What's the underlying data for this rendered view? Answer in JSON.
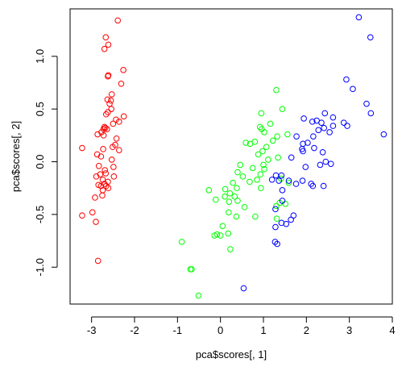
{
  "chart_data": {
    "type": "scatter",
    "title": "",
    "xlabel": "pca$scores[, 1]",
    "ylabel": "pca$scores[, 2]",
    "xlim": [
      -3.5,
      4.0
    ],
    "ylim": [
      -1.35,
      1.45
    ],
    "xticks": [
      -3,
      -2,
      -1,
      0,
      1,
      2,
      3,
      4
    ],
    "yticks": [
      -1.0,
      -0.5,
      0.0,
      0.5,
      1.0
    ],
    "xtick_labels": [
      "-3",
      "-2",
      "-1",
      "0",
      "1",
      "2",
      "3",
      "4"
    ],
    "ytick_labels": [
      "-1.0",
      "-0.5",
      "0.0",
      "0.5",
      "1.0"
    ],
    "grid": false,
    "legend": "none",
    "marker": "open-circle",
    "series": [
      {
        "color": "#ff0000",
        "points": [
          [
            -2.39,
            1.34
          ],
          [
            -2.67,
            1.18
          ],
          [
            -2.61,
            1.11
          ],
          [
            -2.7,
            1.07
          ],
          [
            -2.26,
            0.87
          ],
          [
            -2.61,
            0.82
          ],
          [
            -2.62,
            0.81
          ],
          [
            -2.31,
            0.74
          ],
          [
            -2.53,
            0.64
          ],
          [
            -2.63,
            0.59
          ],
          [
            -2.55,
            0.58
          ],
          [
            -2.58,
            0.55
          ],
          [
            -2.54,
            0.5
          ],
          [
            -2.62,
            0.47
          ],
          [
            -2.66,
            0.45
          ],
          [
            -2.25,
            0.43
          ],
          [
            -2.43,
            0.4
          ],
          [
            -2.36,
            0.38
          ],
          [
            -2.5,
            0.36
          ],
          [
            -2.7,
            0.33
          ],
          [
            -2.68,
            0.32
          ],
          [
            -2.72,
            0.31
          ],
          [
            -2.64,
            0.31
          ],
          [
            -2.77,
            0.28
          ],
          [
            -2.86,
            0.26
          ],
          [
            -2.72,
            0.25
          ],
          [
            -2.42,
            0.22
          ],
          [
            -2.45,
            0.16
          ],
          [
            -2.51,
            0.14
          ],
          [
            -3.22,
            0.13
          ],
          [
            -2.73,
            0.12
          ],
          [
            -2.36,
            0.11
          ],
          [
            -2.87,
            0.07
          ],
          [
            -2.78,
            0.05
          ],
          [
            -2.53,
            0.02
          ],
          [
            -2.83,
            -0.04
          ],
          [
            -2.49,
            -0.05
          ],
          [
            -2.69,
            -0.08
          ],
          [
            -2.8,
            -0.12
          ],
          [
            -2.67,
            -0.11
          ],
          [
            -2.89,
            -0.14
          ],
          [
            -2.48,
            -0.14
          ],
          [
            -2.74,
            -0.17
          ],
          [
            -2.62,
            -0.19
          ],
          [
            -2.7,
            -0.21
          ],
          [
            -2.84,
            -0.22
          ],
          [
            -2.78,
            -0.23
          ],
          [
            -2.66,
            -0.23
          ],
          [
            -2.61,
            -0.25
          ],
          [
            -2.74,
            -0.27
          ],
          [
            -2.92,
            -0.34
          ],
          [
            -2.75,
            -0.32
          ],
          [
            -2.98,
            -0.48
          ],
          [
            -3.22,
            -0.51
          ],
          [
            -2.9,
            -0.57
          ],
          [
            -2.85,
            -0.94
          ]
        ]
      },
      {
        "color": "#00ff00",
        "points": [
          [
            1.3,
            0.68
          ],
          [
            1.44,
            0.5
          ],
          [
            0.95,
            0.46
          ],
          [
            1.16,
            0.36
          ],
          [
            0.92,
            0.33
          ],
          [
            0.96,
            0.31
          ],
          [
            1.32,
            0.24
          ],
          [
            1.56,
            0.26
          ],
          [
            1.02,
            0.28
          ],
          [
            0.8,
            0.19
          ],
          [
            1.22,
            0.2
          ],
          [
            0.69,
            0.17
          ],
          [
            0.59,
            0.18
          ],
          [
            1.07,
            0.14
          ],
          [
            0.98,
            0.1
          ],
          [
            0.88,
            0.07
          ],
          [
            1.34,
            0.04
          ],
          [
            1.11,
            0.02
          ],
          [
            1.0,
            -0.03
          ],
          [
            0.46,
            -0.03
          ],
          [
            0.75,
            -0.06
          ],
          [
            1.02,
            -0.07
          ],
          [
            0.4,
            -0.1
          ],
          [
            0.93,
            -0.12
          ],
          [
            0.85,
            -0.17
          ],
          [
            0.52,
            -0.14
          ],
          [
            1.41,
            -0.16
          ],
          [
            0.68,
            -0.19
          ],
          [
            0.29,
            -0.2
          ],
          [
            1.59,
            -0.2
          ],
          [
            0.38,
            -0.25
          ],
          [
            0.94,
            -0.25
          ],
          [
            0.11,
            -0.26
          ],
          [
            -0.27,
            -0.27
          ],
          [
            0.22,
            -0.3
          ],
          [
            0.33,
            -0.33
          ],
          [
            0.1,
            -0.33
          ],
          [
            0.4,
            -0.37
          ],
          [
            0.2,
            -0.38
          ],
          [
            1.38,
            -0.39
          ],
          [
            -0.11,
            -0.36
          ],
          [
            1.51,
            -0.4
          ],
          [
            1.3,
            -0.42
          ],
          [
            0.56,
            -0.43
          ],
          [
            0.19,
            -0.48
          ],
          [
            0.37,
            -0.52
          ],
          [
            0.81,
            -0.52
          ],
          [
            1.31,
            -0.54
          ],
          [
            0.05,
            -0.61
          ],
          [
            0.0,
            -0.7
          ],
          [
            -0.14,
            -0.7
          ],
          [
            -0.08,
            -0.69
          ],
          [
            0.18,
            -0.68
          ],
          [
            0.23,
            -0.83
          ],
          [
            -0.9,
            -0.76
          ],
          [
            -0.67,
            -1.02
          ],
          [
            -0.7,
            -1.02
          ],
          [
            -0.51,
            -1.27
          ]
        ]
      },
      {
        "color": "#0000ff",
        "points": [
          [
            3.22,
            1.37
          ],
          [
            3.49,
            1.18
          ],
          [
            2.93,
            0.78
          ],
          [
            3.08,
            0.69
          ],
          [
            3.4,
            0.55
          ],
          [
            2.43,
            0.46
          ],
          [
            2.62,
            0.42
          ],
          [
            3.5,
            0.46
          ],
          [
            2.24,
            0.39
          ],
          [
            1.94,
            0.41
          ],
          [
            2.14,
            0.38
          ],
          [
            2.35,
            0.37
          ],
          [
            2.62,
            0.34
          ],
          [
            2.87,
            0.37
          ],
          [
            2.95,
            0.34
          ],
          [
            2.28,
            0.3
          ],
          [
            2.41,
            0.32
          ],
          [
            2.54,
            0.28
          ],
          [
            3.8,
            0.26
          ],
          [
            2.16,
            0.24
          ],
          [
            1.77,
            0.24
          ],
          [
            1.92,
            0.17
          ],
          [
            2.03,
            0.18
          ],
          [
            1.9,
            0.12
          ],
          [
            1.92,
            0.1
          ],
          [
            2.18,
            0.13
          ],
          [
            2.38,
            0.09
          ],
          [
            1.65,
            0.04
          ],
          [
            2.45,
            0.0
          ],
          [
            2.32,
            -0.03
          ],
          [
            2.57,
            -0.02
          ],
          [
            1.98,
            -0.05
          ],
          [
            1.42,
            -0.13
          ],
          [
            1.29,
            -0.13
          ],
          [
            1.36,
            -0.18
          ],
          [
            1.2,
            -0.17
          ],
          [
            1.59,
            -0.18
          ],
          [
            1.76,
            -0.21
          ],
          [
            2.11,
            -0.21
          ],
          [
            2.15,
            -0.23
          ],
          [
            1.91,
            -0.18
          ],
          [
            2.4,
            -0.23
          ],
          [
            1.44,
            -0.27
          ],
          [
            1.44,
            -0.37
          ],
          [
            1.28,
            -0.45
          ],
          [
            1.7,
            -0.51
          ],
          [
            1.64,
            -0.55
          ],
          [
            1.53,
            -0.59
          ],
          [
            1.42,
            -0.58
          ],
          [
            1.28,
            -0.62
          ],
          [
            1.27,
            -0.76
          ],
          [
            1.32,
            -0.78
          ],
          [
            0.54,
            -1.2
          ]
        ]
      }
    ]
  }
}
